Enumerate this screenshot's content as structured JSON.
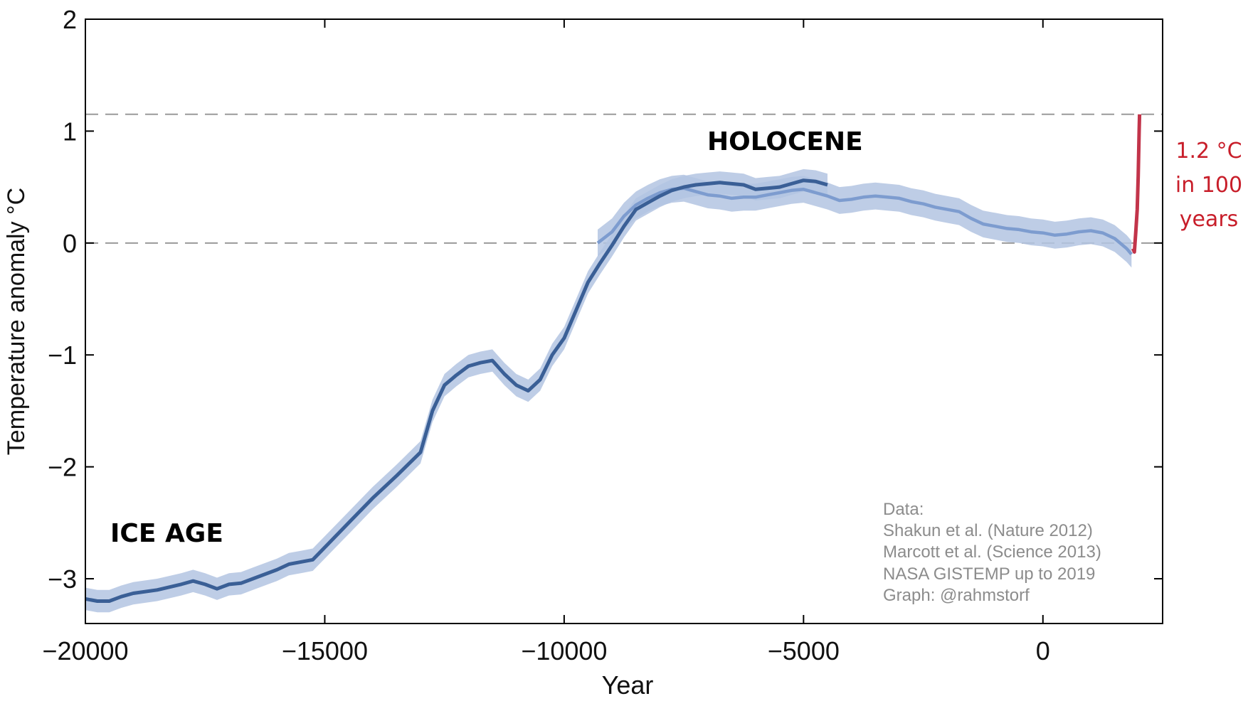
{
  "chart_data": {
    "type": "line",
    "xlabel": "Year",
    "ylabel": "Temperature anomaly °C",
    "xlim": [
      -20000,
      2500
    ],
    "ylim": [
      -3.4,
      2
    ],
    "x_ticks": [
      -20000,
      -15000,
      -10000,
      -5000,
      0
    ],
    "x_tick_labels": [
      "−20000",
      "−15000",
      "−10000",
      "−5000",
      "0"
    ],
    "y_ticks": [
      -3,
      -2,
      -1,
      0,
      1,
      2
    ],
    "y_tick_labels": [
      "−3",
      "−2",
      "−1",
      "0",
      "1",
      "2"
    ],
    "reference_lines": [
      0,
      1.15
    ],
    "annotations": {
      "ice_age": "ICE AGE",
      "holocene": "HOLOCENE",
      "warming_line1": "1.2 °C",
      "warming_line2": "in 100",
      "warming_line3": "years"
    },
    "credits": [
      "Data:",
      "Shakun et al. (Nature 2012)",
      "Marcott et al. (Science 2013)",
      "NASA GISTEMP up to 2019",
      "Graph: @rahmstorf"
    ],
    "colors": {
      "shakun": "#3a5f96",
      "marcott": "#7d9ccf",
      "band": "#b3c4e2",
      "modern": "#c2344a",
      "reference": "#9a9a9a"
    },
    "series": [
      {
        "name": "Shakun et al. (Nature 2012)",
        "band": 0.1,
        "x": [
          -20000,
          -19750,
          -19500,
          -19250,
          -19000,
          -18500,
          -18000,
          -17750,
          -17500,
          -17250,
          -17000,
          -16750,
          -16500,
          -16000,
          -15750,
          -15500,
          -15250,
          -15000,
          -14500,
          -14000,
          -13500,
          -13000,
          -12750,
          -12500,
          -12250,
          -12000,
          -11750,
          -11500,
          -11250,
          -11000,
          -10750,
          -10500,
          -10250,
          -10000,
          -9750,
          -9500,
          -9250,
          -9000,
          -8750,
          -8500,
          -8250,
          -8000,
          -7750,
          -7500,
          -7250,
          -7000,
          -6750,
          -6500,
          -6250,
          -6000,
          -5750,
          -5500,
          -5250,
          -5000,
          -4750,
          -4500
        ],
        "values": [
          -3.18,
          -3.2,
          -3.2,
          -3.16,
          -3.13,
          -3.1,
          -3.05,
          -3.02,
          -3.05,
          -3.09,
          -3.05,
          -3.04,
          -3.0,
          -2.92,
          -2.87,
          -2.85,
          -2.83,
          -2.72,
          -2.5,
          -2.28,
          -2.08,
          -1.87,
          -1.5,
          -1.27,
          -1.18,
          -1.1,
          -1.07,
          -1.05,
          -1.17,
          -1.27,
          -1.32,
          -1.22,
          -1.0,
          -0.85,
          -0.6,
          -0.35,
          -0.18,
          -0.02,
          0.15,
          0.3,
          0.36,
          0.42,
          0.47,
          0.5,
          0.52,
          0.53,
          0.54,
          0.53,
          0.52,
          0.48,
          0.49,
          0.5,
          0.53,
          0.56,
          0.55,
          0.52
        ]
      },
      {
        "name": "Marcott et al. (Science 2013)",
        "band": 0.12,
        "x": [
          -9300,
          -9000,
          -8750,
          -8500,
          -8250,
          -8000,
          -7750,
          -7500,
          -7250,
          -7000,
          -6750,
          -6500,
          -6250,
          -6000,
          -5750,
          -5500,
          -5250,
          -5000,
          -4750,
          -4500,
          -4250,
          -4000,
          -3750,
          -3500,
          -3250,
          -3000,
          -2750,
          -2500,
          -2250,
          -2000,
          -1750,
          -1500,
          -1250,
          -1000,
          -750,
          -500,
          -250,
          0,
          250,
          500,
          750,
          1000,
          1250,
          1500,
          1750,
          1850
        ],
        "values": [
          0.0,
          0.1,
          0.24,
          0.34,
          0.4,
          0.45,
          0.48,
          0.49,
          0.46,
          0.43,
          0.42,
          0.4,
          0.41,
          0.41,
          0.43,
          0.45,
          0.47,
          0.48,
          0.45,
          0.42,
          0.38,
          0.39,
          0.41,
          0.42,
          0.41,
          0.4,
          0.37,
          0.35,
          0.32,
          0.3,
          0.28,
          0.22,
          0.17,
          0.15,
          0.13,
          0.12,
          0.1,
          0.09,
          0.07,
          0.08,
          0.1,
          0.11,
          0.09,
          0.04,
          -0.05,
          -0.1
        ]
      },
      {
        "name": "NASA GISTEMP up to 2019",
        "x": [
          1880,
          1910,
          1940,
          1970,
          1990,
          2010,
          2019
        ],
        "values": [
          -0.05,
          -0.08,
          0.1,
          0.3,
          0.6,
          1.0,
          1.15
        ]
      }
    ]
  }
}
